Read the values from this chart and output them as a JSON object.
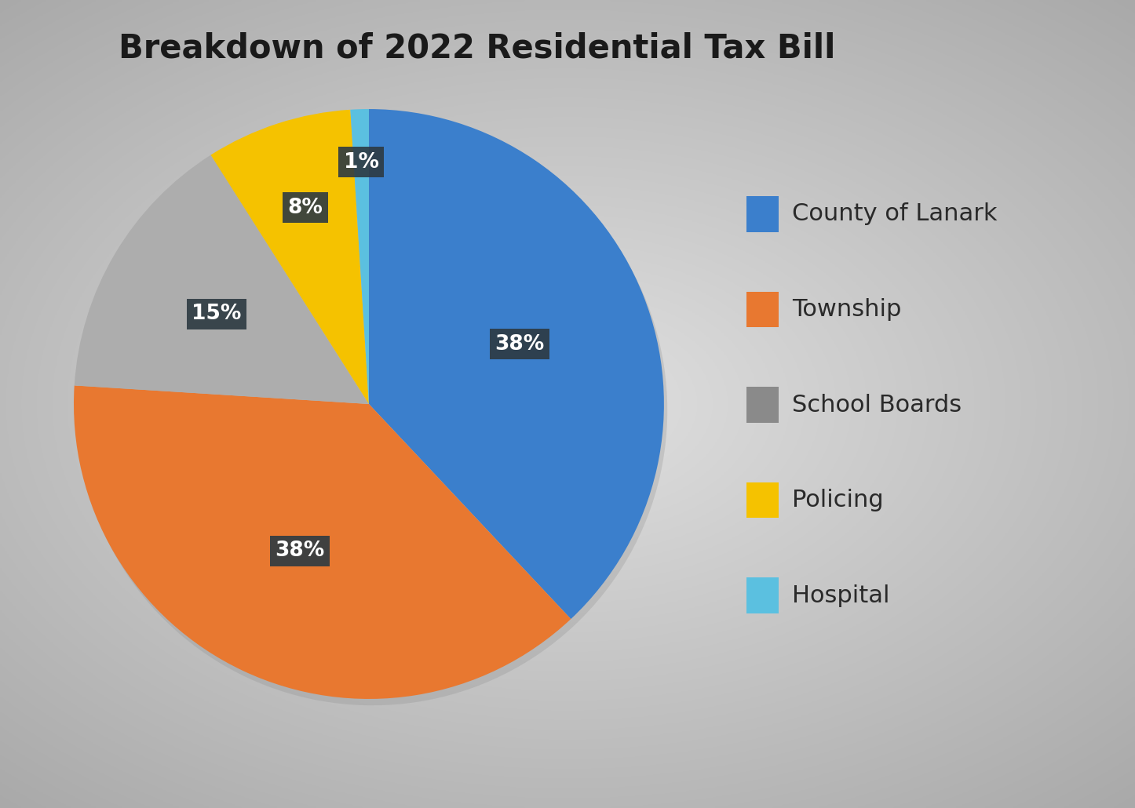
{
  "title": "Breakdown of 2022 Residential Tax Bill",
  "slices": [
    {
      "label": "County of Lanark",
      "pct": 38,
      "color": "#3B7FCC"
    },
    {
      "label": "Township",
      "pct": 38,
      "color": "#E87830"
    },
    {
      "label": "School Boards",
      "pct": 15,
      "color": "#ADADAD"
    },
    {
      "label": "Policing",
      "pct": 8,
      "color": "#F5C200"
    },
    {
      "label": "Hospital",
      "pct": 1,
      "color": "#5BC0E0"
    }
  ],
  "legend_colors": [
    "#3B7FCC",
    "#E87830",
    "#8A8A8A",
    "#F5C200",
    "#5BC0E0"
  ],
  "title_fontsize": 30,
  "label_fontsize": 19,
  "legend_fontsize": 22,
  "label_box_color": "#2D3A42",
  "label_text_color": "#FFFFFF",
  "startangle": 90
}
